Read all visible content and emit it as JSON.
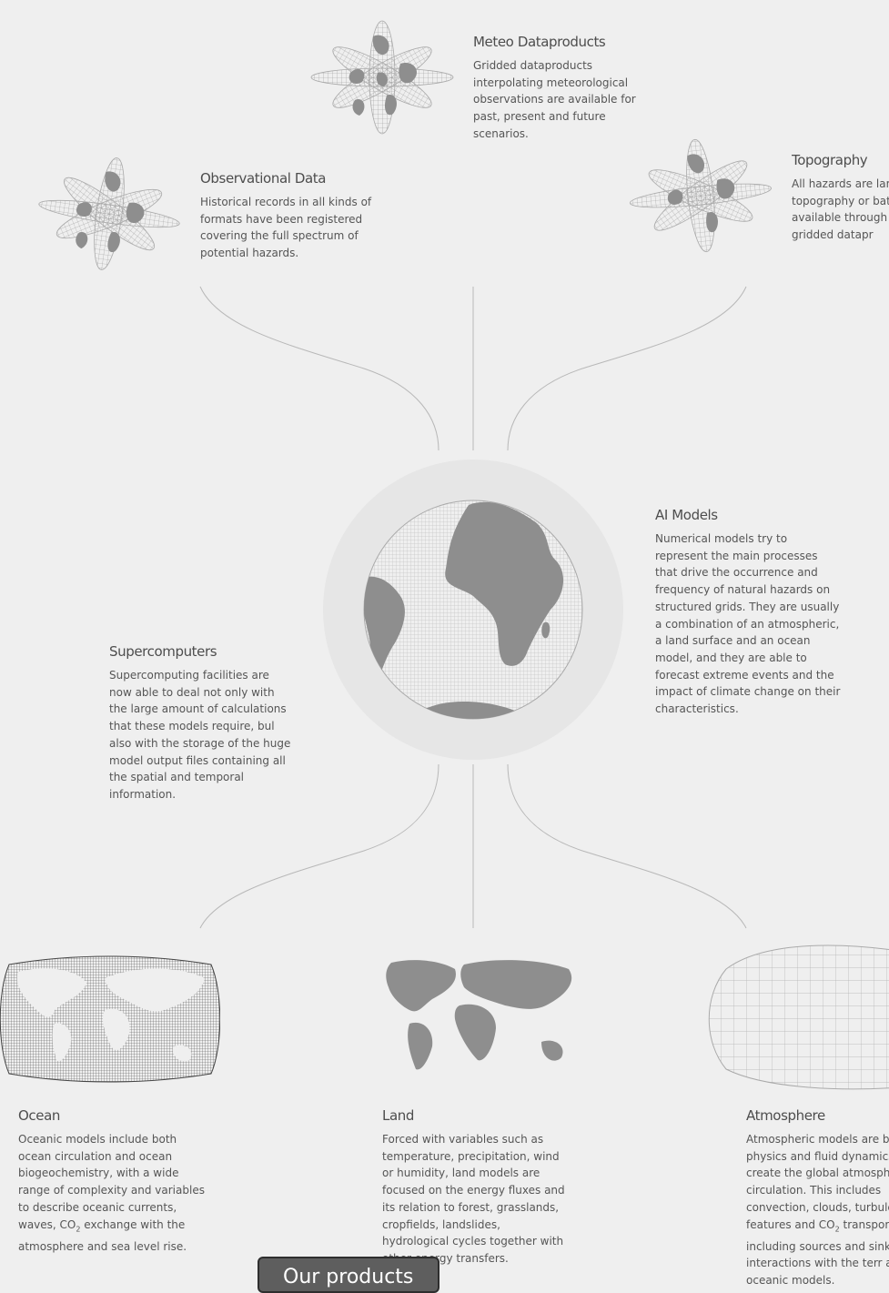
{
  "items": {
    "meteo": {
      "title": "Meteo Dataproducts",
      "desc": "Gridded dataproducts interpolating meteorological observations are available for past, present and future scenarios."
    },
    "observational": {
      "title": "Observational Data",
      "desc": "Historical records in all kinds of formats have been registered covering the full spectrum of potential hazards."
    },
    "topography": {
      "title": "Topography",
      "desc": "All hazards are large topography or bath available through re and gridded datapr"
    },
    "ai_models": {
      "title": "AI Models",
      "desc": "Numerical models try to represent the main processes that drive the occurrence and frequency of natural hazards on structured grids. They are usually a combination of an atmospheric, a land surface and an ocean model, and they are able to forecast extreme events and the impact of climate change on their characteristics."
    },
    "supercomputers": {
      "title": "Supercomputers",
      "desc": "Supercomputing facilities are now able to deal not only with the large amount of calculations that these models require, bul also with the storage of the huge model output files containing all the spatial and temporal information."
    },
    "ocean": {
      "title": "Ocean",
      "desc_a": "Oceanic models include both ocean circulation and ocean biogeochemistry, with a wide range of complexity and variables to describe oceanic currents, waves, CO",
      "desc_sub": "2",
      "desc_b": " exchange with the atmosphere and sea level rise."
    },
    "land": {
      "title": "Land",
      "desc": "Forced with variables such as temperature, precipitation, wind or humidity, land models are focused on the energy fluxes and its relation to forest, grasslands, cropfields, landslides, hydrological cycles together with other energy transfers."
    },
    "atmosphere": {
      "title": "Atmosphere",
      "desc_a": "Atmospheric models are bas physics and fluid dynamics t create the global atmospher circulation. This includes convection, clouds, turbulen features and CO",
      "desc_sub": "2",
      "desc_b": " transport including sources and sinks t the interactions with the terr and oceanic models."
    }
  },
  "cta": {
    "label": "Our products"
  },
  "colors": {
    "background": "#efefef",
    "land": "#8e8e8e",
    "grid": "#a9a9a9",
    "line": "#b3b3b3",
    "halo": "#e6e6e6"
  }
}
